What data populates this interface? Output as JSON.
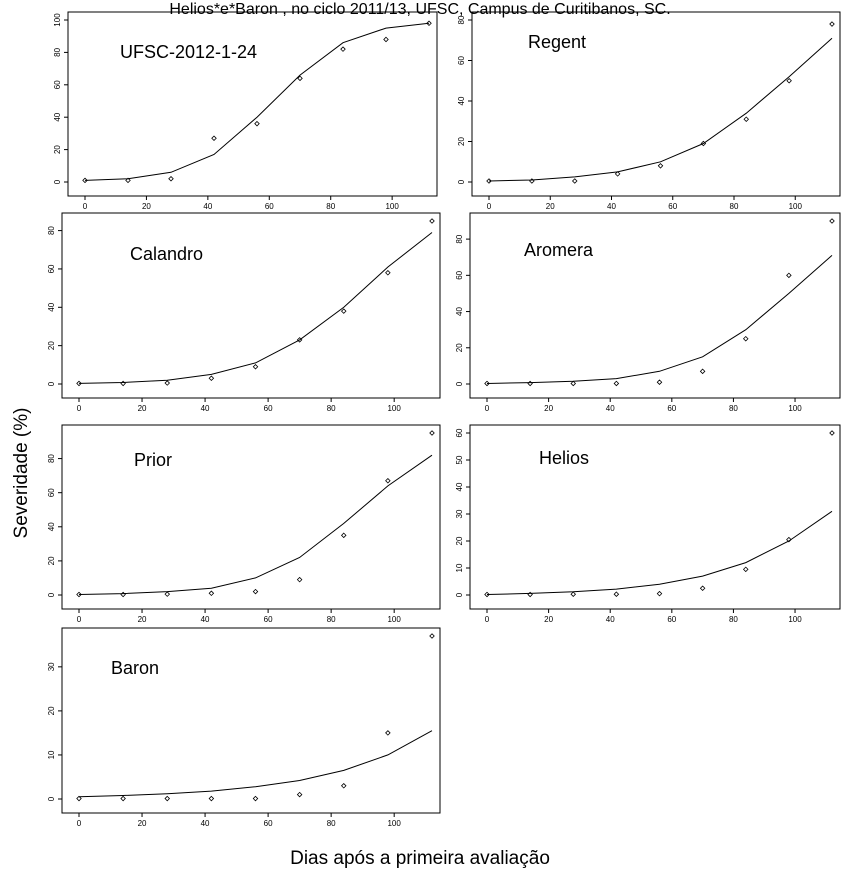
{
  "figure": {
    "top_caption": "Helios*e*Baron , no ciclo 2011/13, UFSC, Campus de Curitibanos, SC.",
    "ylabel": "Severidade (%)",
    "xlabel": "Dias após a primeira avaliação"
  },
  "chart_data": [
    {
      "type": "scatter",
      "title": "UFSC-2012-1-24",
      "x": [
        0,
        14,
        28,
        42,
        56,
        70,
        84,
        98,
        112
      ],
      "observed": [
        1,
        1,
        2,
        27,
        36,
        64,
        82,
        88,
        98
      ],
      "fitted": [
        1,
        2,
        6,
        17,
        40,
        66,
        86,
        95,
        98
      ],
      "xlim": [
        0,
        112
      ],
      "ylim": [
        0,
        100
      ],
      "xticks": [
        0,
        20,
        40,
        60,
        80,
        100
      ],
      "yticks": [
        0,
        20,
        40,
        60,
        80,
        100
      ]
    },
    {
      "type": "scatter",
      "title": "Regent",
      "x": [
        0,
        14,
        28,
        42,
        56,
        70,
        84,
        98,
        112
      ],
      "observed": [
        0.5,
        0.5,
        0.5,
        4,
        8,
        19,
        31,
        50,
        78
      ],
      "fitted": [
        0.5,
        1,
        2.5,
        5,
        10,
        19,
        34,
        52,
        71
      ],
      "xlim": [
        0,
        112
      ],
      "ylim": [
        0,
        80
      ],
      "xticks": [
        0,
        20,
        40,
        60,
        80,
        100
      ],
      "yticks": [
        0,
        20,
        40,
        60,
        80
      ]
    },
    {
      "type": "scatter",
      "title": "Calandro",
      "x": [
        0,
        14,
        28,
        42,
        56,
        70,
        84,
        98,
        112
      ],
      "observed": [
        0.3,
        0.3,
        0.5,
        3,
        9,
        23,
        38,
        58,
        85
      ],
      "fitted": [
        0.3,
        0.8,
        2,
        5,
        11,
        23,
        40,
        61,
        79
      ],
      "xlim": [
        0,
        112
      ],
      "ylim": [
        0,
        85
      ],
      "xticks": [
        0,
        20,
        40,
        60,
        80,
        100
      ],
      "yticks": [
        0,
        20,
        40,
        60,
        80
      ]
    },
    {
      "type": "scatter",
      "title": "Aromera",
      "x": [
        0,
        14,
        28,
        42,
        56,
        70,
        84,
        98,
        112
      ],
      "observed": [
        0.3,
        0.3,
        0.3,
        0.3,
        1,
        7,
        25,
        60,
        90
      ],
      "fitted": [
        0.3,
        0.8,
        1.5,
        3,
        7,
        15,
        30,
        50,
        71
      ],
      "xlim": [
        0,
        112
      ],
      "ylim": [
        0,
        90
      ],
      "xticks": [
        0,
        20,
        40,
        60,
        80,
        100
      ],
      "yticks": [
        0,
        20,
        40,
        60,
        80
      ]
    },
    {
      "type": "scatter",
      "title": "Prior",
      "x": [
        0,
        14,
        28,
        42,
        56,
        70,
        84,
        98,
        112
      ],
      "observed": [
        0.3,
        0.3,
        0.5,
        1,
        2,
        9,
        35,
        67,
        95
      ],
      "fitted": [
        0.3,
        0.8,
        2,
        4,
        10,
        22,
        42,
        64,
        82
      ],
      "xlim": [
        0,
        112
      ],
      "ylim": [
        0,
        95
      ],
      "xticks": [
        0,
        20,
        40,
        60,
        80,
        100
      ],
      "yticks": [
        0,
        20,
        40,
        60,
        80
      ]
    },
    {
      "type": "scatter",
      "title": "Helios",
      "x": [
        0,
        14,
        28,
        42,
        56,
        70,
        84,
        98,
        112
      ],
      "observed": [
        0.2,
        0.2,
        0.3,
        0.3,
        0.5,
        2.5,
        9.5,
        20.5,
        60
      ],
      "fitted": [
        0.2,
        0.6,
        1.2,
        2.2,
        4,
        7,
        12,
        20,
        31
      ],
      "xlim": [
        0,
        112
      ],
      "ylim": [
        0,
        60
      ],
      "xticks": [
        0,
        20,
        40,
        60,
        80,
        100
      ],
      "yticks": [
        0,
        10,
        20,
        30,
        40,
        50,
        60
      ]
    },
    {
      "type": "scatter",
      "title": "Baron",
      "x": [
        0,
        14,
        28,
        42,
        56,
        70,
        84,
        98,
        112
      ],
      "observed": [
        0.1,
        0.1,
        0.1,
        0.1,
        0.1,
        1,
        3,
        15,
        37
      ],
      "fitted": [
        0.5,
        0.8,
        1.2,
        1.8,
        2.8,
        4.2,
        6.5,
        10,
        15.5
      ],
      "xlim": [
        0,
        112
      ],
      "ylim": [
        0,
        37
      ],
      "xticks": [
        0,
        20,
        40,
        60,
        80,
        100
      ],
      "yticks": [
        0,
        10,
        20,
        30
      ]
    }
  ]
}
